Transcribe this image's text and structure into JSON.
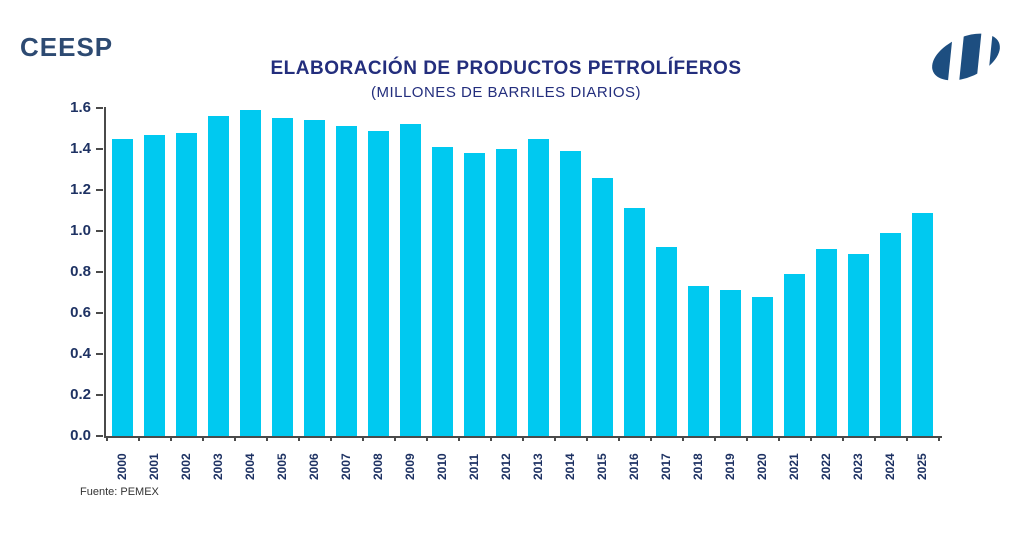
{
  "header": {
    "brand": "CEESP",
    "logo_icon": "ceesp-swirl-logo"
  },
  "footer": {
    "source": "Fuente: PEMEX"
  },
  "colors": {
    "bar": "#00c9f0",
    "title_text": "#232e7d",
    "axis_text": "#1e3263",
    "axis_line": "#4a4a4a",
    "brand_text": "#2d4a72",
    "logo_fill": "#1d4e80",
    "background": "#ffffff"
  },
  "chart_data": {
    "type": "bar",
    "title": "ELABORACIÓN DE PRODUCTOS PETROLÍFEROS",
    "subtitle": "(MILLONES DE BARRILES DIARIOS)",
    "categories": [
      "2000",
      "2001",
      "2002",
      "2003",
      "2004",
      "2005",
      "2006",
      "2007",
      "2008",
      "2009",
      "2010",
      "2011",
      "2012",
      "2013",
      "2014",
      "2015",
      "2016",
      "2017",
      "2018",
      "2019",
      "2020",
      "2021",
      "2022",
      "2023",
      "2024",
      "2025"
    ],
    "values": [
      1.45,
      1.47,
      1.48,
      1.56,
      1.59,
      1.55,
      1.54,
      1.51,
      1.49,
      1.52,
      1.41,
      1.38,
      1.4,
      1.45,
      1.39,
      1.26,
      1.11,
      0.92,
      0.73,
      0.71,
      0.68,
      0.79,
      0.91,
      0.89,
      0.99,
      1.09
    ],
    "xlabel": "",
    "ylabel": "",
    "ylim": [
      0.0,
      1.6
    ],
    "ytick_step": 0.2,
    "ytick_labels": [
      "0.0",
      "0.2",
      "0.4",
      "0.6",
      "0.8",
      "1.0",
      "1.2",
      "1.4",
      "1.6"
    ],
    "grid": false,
    "legend": null,
    "source": "Fuente: PEMEX"
  }
}
